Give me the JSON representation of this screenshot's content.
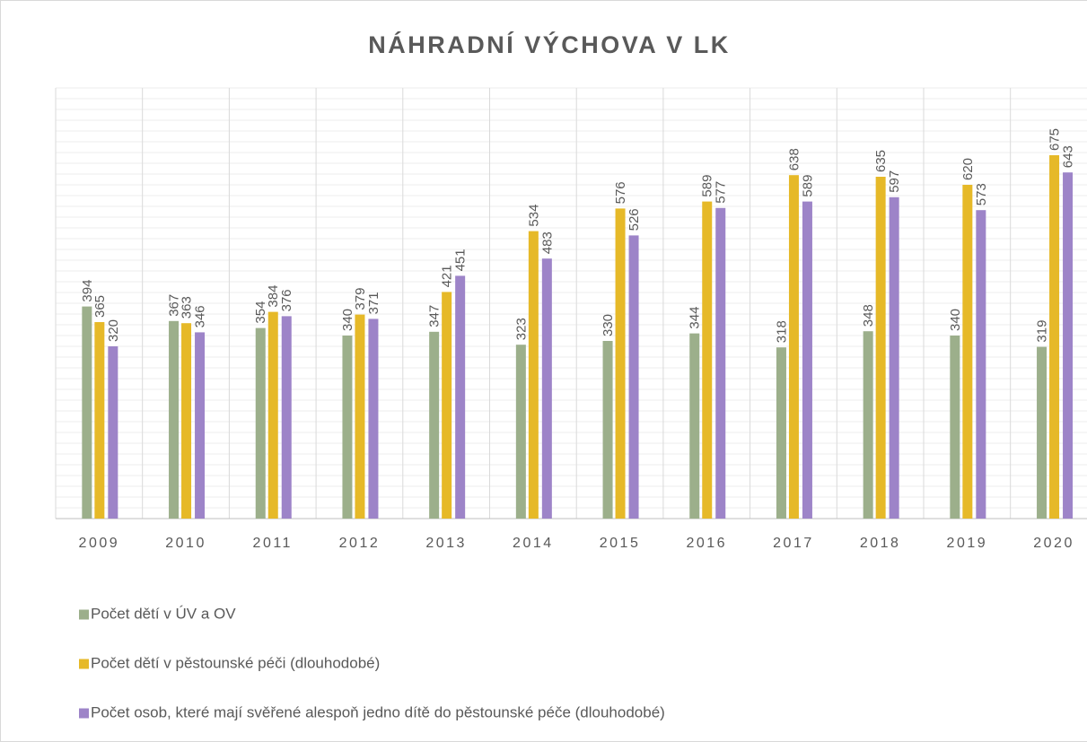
{
  "chart_data": {
    "type": "bar",
    "title": "NÁHRADNÍ VÝCHOVA V LK",
    "categories": [
      "2009",
      "2010",
      "2011",
      "2012",
      "2013",
      "2014",
      "2015",
      "2016",
      "2017",
      "2018",
      "2019",
      "2020"
    ],
    "series": [
      {
        "name": "Počet dětí v ÚV a OV",
        "color": "#9caf8b",
        "values": [
          394,
          367,
          354,
          340,
          347,
          323,
          330,
          344,
          318,
          348,
          340,
          319
        ]
      },
      {
        "name": "Počet dětí v pěstounské péči (dlouhodobé)",
        "color": "#e6b928",
        "values": [
          365,
          363,
          384,
          379,
          421,
          534,
          576,
          589,
          638,
          635,
          620,
          675
        ]
      },
      {
        "name": "Počet osob, které mají svěřené alespoň jedno dítě do pěstounské péče (dlouhodobé)",
        "color": "#9d84c8",
        "values": [
          320,
          346,
          376,
          371,
          451,
          483,
          526,
          577,
          589,
          597,
          573,
          643
        ]
      }
    ],
    "ylim": [
      0,
      800
    ],
    "yticks": [
      0,
      20,
      40,
      60,
      80,
      100,
      120,
      140,
      160,
      180,
      200,
      220,
      240,
      260,
      280,
      300,
      320,
      340,
      360,
      380,
      400,
      420,
      440,
      460,
      480,
      500,
      520,
      540,
      560,
      580,
      600,
      620,
      640,
      660,
      680,
      700,
      720,
      740,
      760,
      780,
      800
    ],
    "grid": true
  }
}
